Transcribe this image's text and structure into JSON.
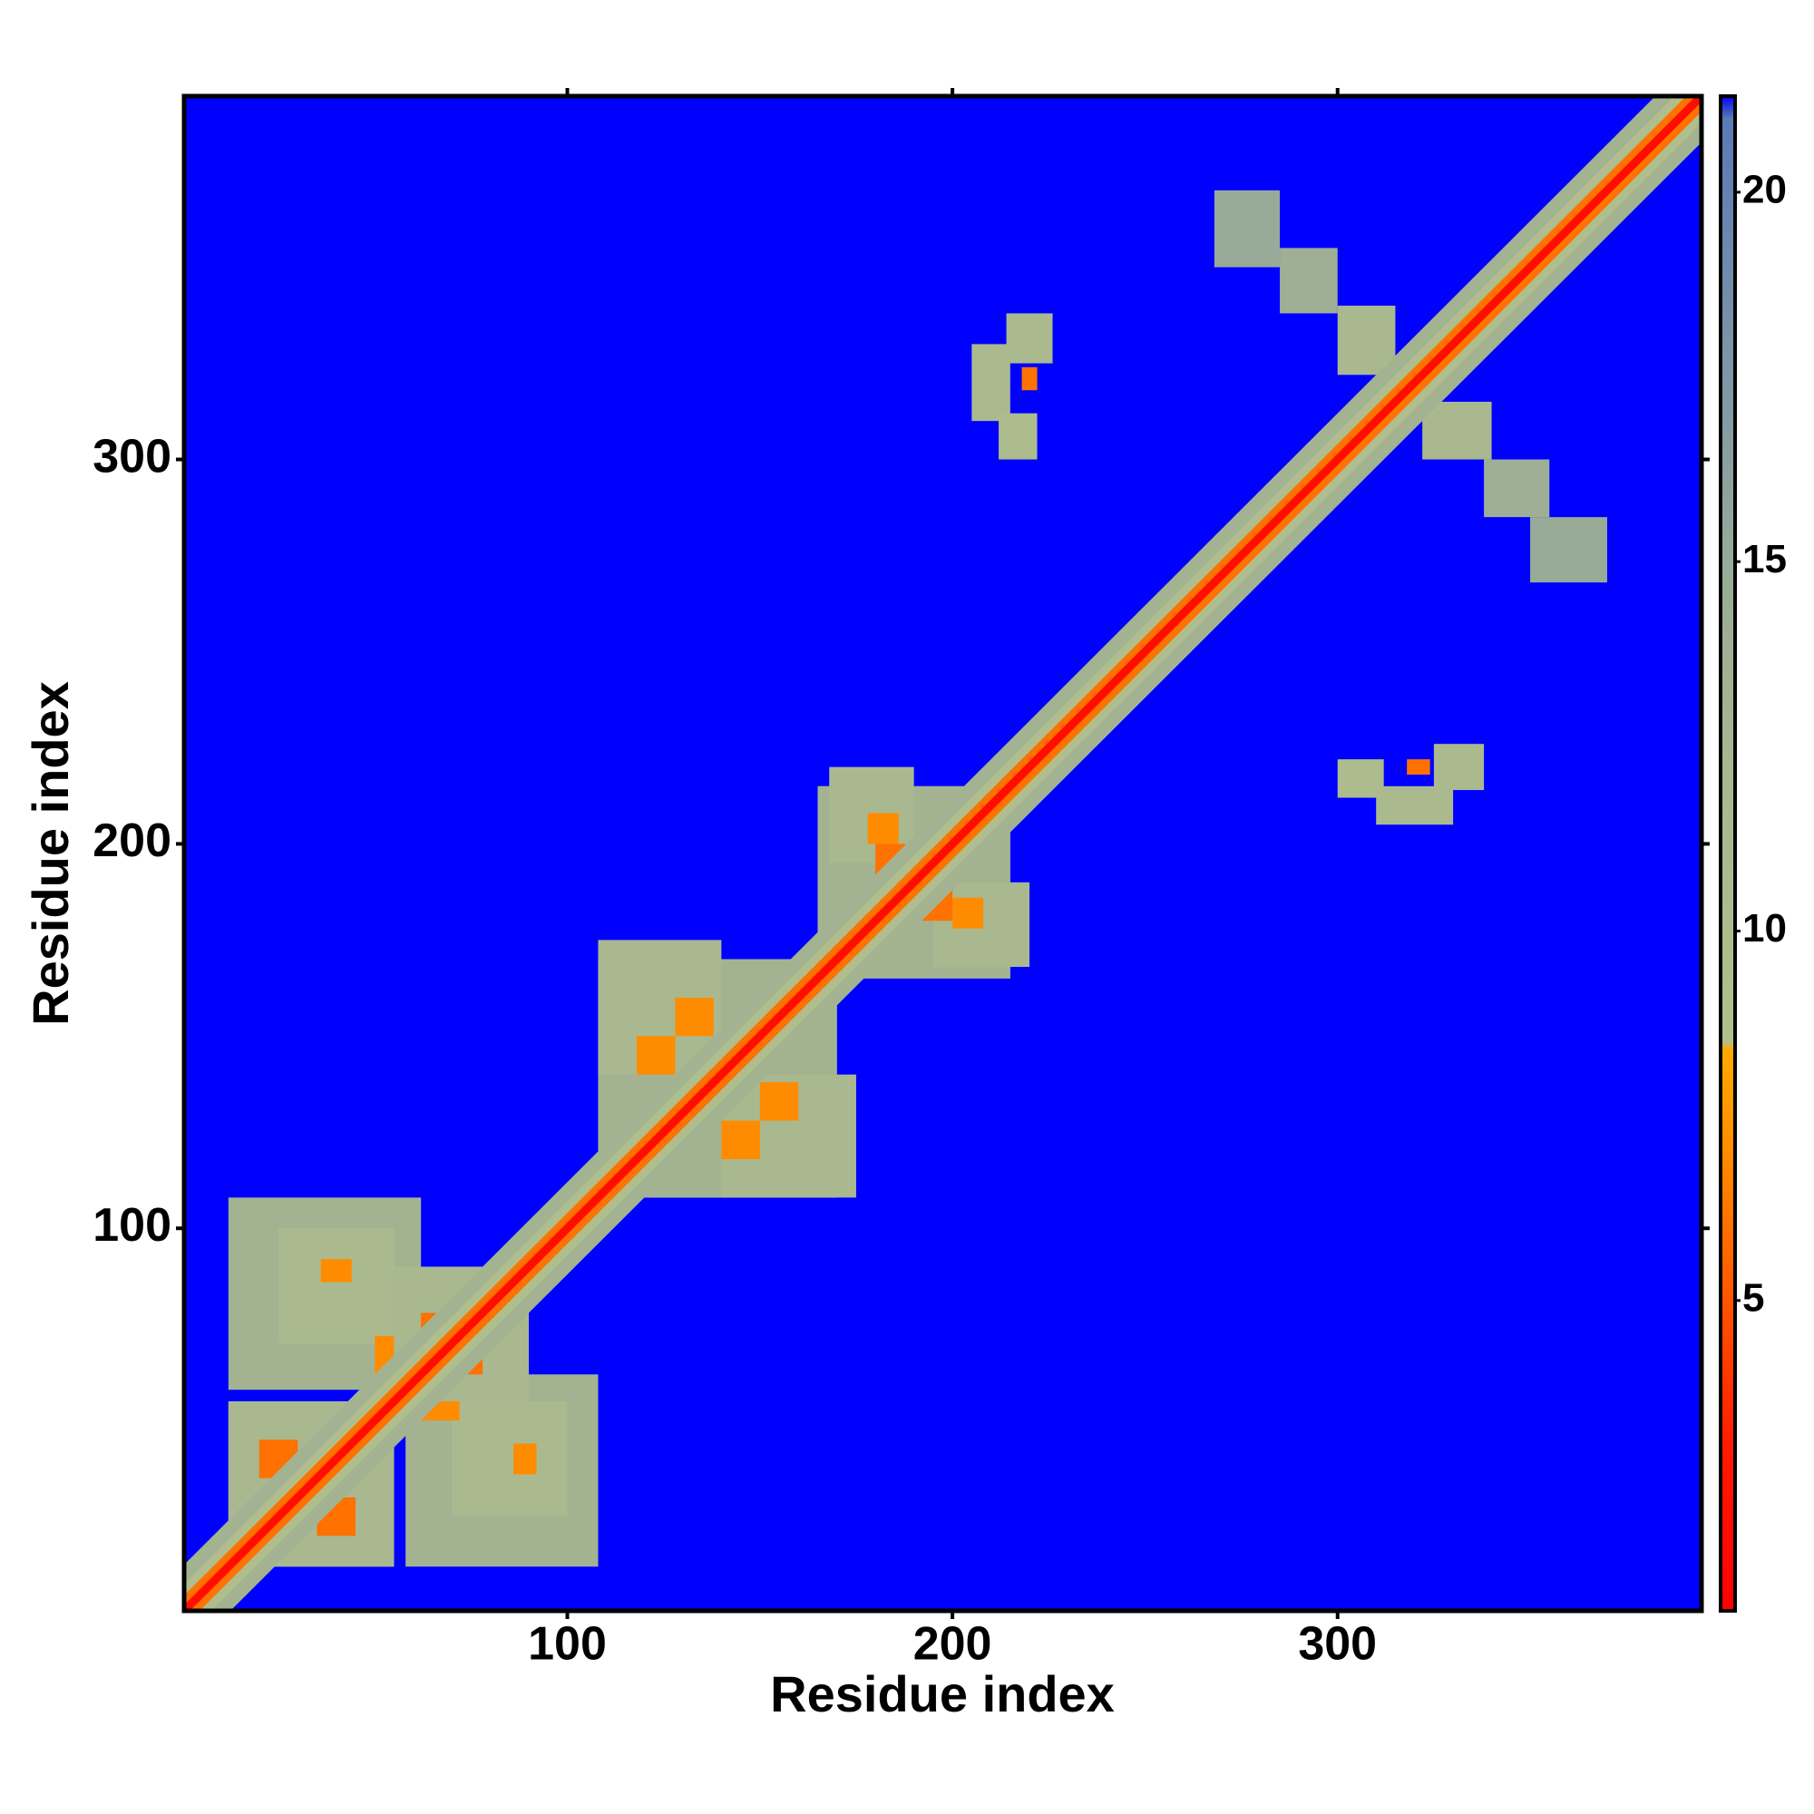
{
  "chart_data": {
    "type": "heatmap",
    "xlabel": "Residue index",
    "ylabel": "Residue index",
    "xlim": [
      0.5,
      394.5
    ],
    "ylim": [
      0.5,
      394.5
    ],
    "xticks": [
      100,
      200,
      300
    ],
    "yticks": [
      100,
      200,
      300
    ],
    "zlim": [
      0.8,
      21.3
    ],
    "zticks": [
      5,
      10,
      15,
      20
    ],
    "colorscale": [
      [
        0.8,
        "#ff0000"
      ],
      [
        3,
        "#ff1a00"
      ],
      [
        5,
        "#ff5500"
      ],
      [
        7,
        "#ff8c00"
      ],
      [
        8.4,
        "#ffaa00"
      ],
      [
        8.5,
        "#b0bf8c"
      ],
      [
        12,
        "#a9b88f"
      ],
      [
        15,
        "#98aa98"
      ],
      [
        18,
        "#7a93a8"
      ],
      [
        21,
        "#5a7ab5"
      ],
      [
        21.3,
        "#0000ff"
      ]
    ],
    "background_value": 21.3,
    "symmetric": true,
    "patches": [
      {
        "x": [
          12,
          62
        ],
        "y": [
          58,
          108
        ],
        "value": 13
      },
      {
        "x": [
          25,
          55
        ],
        "y": [
          70,
          100
        ],
        "value": 11
      },
      {
        "x": [
          36,
          44
        ],
        "y": [
          86,
          92
        ],
        "value": 7
      },
      {
        "x": [
          50,
          58
        ],
        "y": [
          62,
          72
        ],
        "value": 7
      },
      {
        "x": [
          12,
          55
        ],
        "y": [
          12,
          55
        ],
        "value": 12
      },
      {
        "x": [
          20,
          30
        ],
        "y": [
          35,
          45
        ],
        "value": 6
      },
      {
        "x": [
          55,
          90
        ],
        "y": [
          55,
          90
        ],
        "value": 12
      },
      {
        "x": [
          62,
          72
        ],
        "y": [
          68,
          78
        ],
        "value": 6
      },
      {
        "x": [
          108,
          170
        ],
        "y": [
          108,
          170
        ],
        "value": 13
      },
      {
        "x": [
          108,
          140
        ],
        "y": [
          140,
          175
        ],
        "value": 12
      },
      {
        "x": [
          118,
          128
        ],
        "y": [
          140,
          150
        ],
        "value": 7
      },
      {
        "x": [
          128,
          138
        ],
        "y": [
          150,
          160
        ],
        "value": 7
      },
      {
        "x": [
          165,
          215
        ],
        "y": [
          165,
          215
        ],
        "value": 13
      },
      {
        "x": [
          168,
          190
        ],
        "y": [
          195,
          220
        ],
        "value": 12
      },
      {
        "x": [
          178,
          186
        ],
        "y": [
          200,
          208
        ],
        "value": 7
      },
      {
        "x": [
          180,
          188
        ],
        "y": [
          192,
          200
        ],
        "value": 6
      },
      {
        "x": [
          205,
          215
        ],
        "y": [
          310,
          330
        ],
        "value": 11
      },
      {
        "x": [
          212,
          222
        ],
        "y": [
          300,
          312
        ],
        "value": 10
      },
      {
        "x": [
          214,
          226
        ],
        "y": [
          325,
          338
        ],
        "value": 11
      },
      {
        "x": [
          218,
          222
        ],
        "y": [
          318,
          324
        ],
        "value": 6
      },
      {
        "x": [
          268,
          285
        ],
        "y": [
          350,
          370
        ],
        "value": 15
      },
      {
        "x": [
          285,
          300
        ],
        "y": [
          338,
          355
        ],
        "value": 14
      },
      {
        "x": [
          300,
          315
        ],
        "y": [
          322,
          340
        ],
        "value": 12
      },
      {
        "x": [
          312,
          325
        ],
        "y": [
          312,
          325
        ],
        "value": 10
      }
    ],
    "diagonal_band": {
      "half_widths": [
        12,
        7,
        4,
        1.5
      ],
      "values": [
        13,
        9,
        6,
        2
      ]
    }
  }
}
